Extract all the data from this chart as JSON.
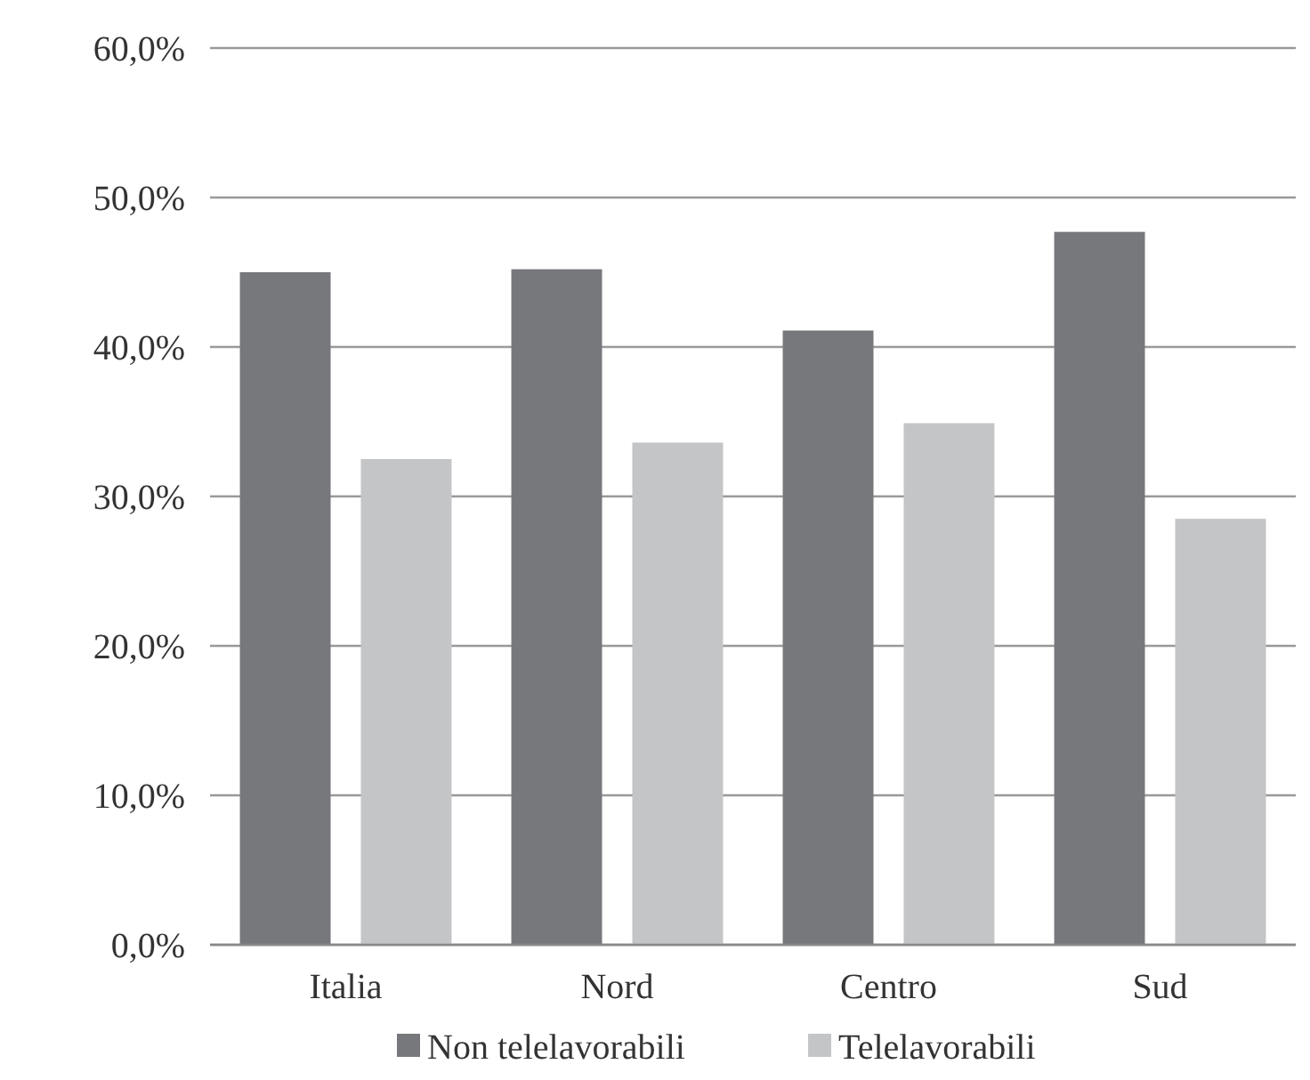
{
  "chart_data": {
    "type": "bar",
    "categories": [
      "Italia",
      "Nord",
      "Centro",
      "Sud"
    ],
    "series": [
      {
        "name": "Non telelavorabili",
        "color": "#77787c",
        "values": [
          45.0,
          45.2,
          41.1,
          47.7
        ]
      },
      {
        "name": "Telelavorabili",
        "color": "#c4c5c7",
        "values": [
          32.5,
          33.6,
          34.9,
          28.5
        ]
      }
    ],
    "ylim": [
      0,
      60
    ],
    "yticks": [
      {
        "value": 0,
        "label": "0,0%"
      },
      {
        "value": 10,
        "label": "10,0%"
      },
      {
        "value": 20,
        "label": "20,0%"
      },
      {
        "value": 30,
        "label": "30,0%"
      },
      {
        "value": 40,
        "label": "40,0%"
      },
      {
        "value": 50,
        "label": "50,0%"
      },
      {
        "value": 60,
        "label": "60,0%"
      }
    ],
    "grid": "y",
    "legend": "bottom"
  }
}
